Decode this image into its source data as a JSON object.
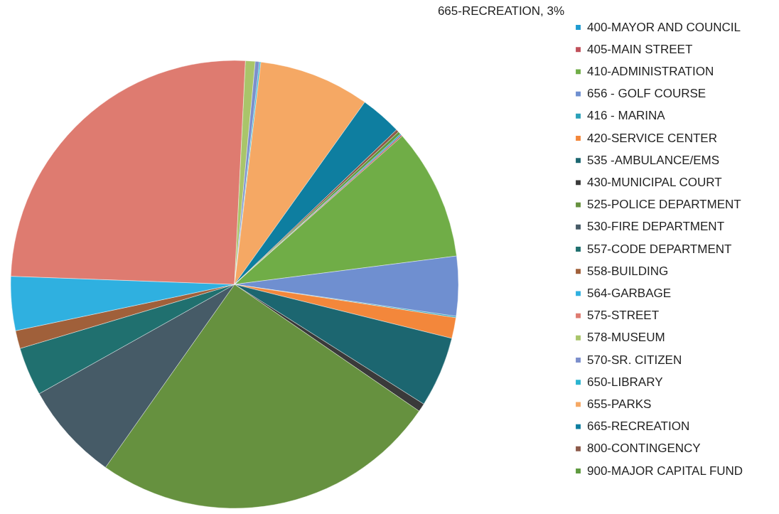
{
  "chart_data": {
    "type": "pie",
    "categories": [
      "400-MAYOR AND COUNCIL",
      "405-MAIN STREET",
      "410-ADMINISTRATION",
      "656 - GOLF COURSE",
      "416 - MARINA",
      "420-SERVICE CENTER",
      "535 -AMBULANCE/EMS",
      "430-MUNICIPAL COURT",
      "525-POLICE DEPARTMENT",
      "530-FIRE DEPARTMENT",
      "557-CODE DEPARTMENT",
      "558-BUILDING",
      "564-GARBAGE",
      "575-STREET",
      "578-MUSEUM",
      "570-SR. CITIZEN",
      "650-LIBRARY",
      "655-PARKS",
      "665-RECREATION",
      "800-CONTINGENCY",
      "900-MAJOR CAPITAL FUND"
    ],
    "values": [
      0.1,
      0.1,
      9.5,
      4.3,
      0.1,
      1.5,
      5.1,
      0.6,
      25.2,
      7.1,
      3.5,
      1.3,
      3.9,
      25.2,
      0.7,
      0.3,
      0.1,
      8,
      3,
      0.2,
      0.2
    ],
    "colors": [
      "#1f9bd1",
      "#c0505a",
      "#70ad47",
      "#6f8fd0",
      "#2aa0b8",
      "#f3873b",
      "#1c6670",
      "#3a3a3a",
      "#66913f",
      "#465b67",
      "#20706f",
      "#a0603a",
      "#2fb0e0",
      "#de7b70",
      "#a9c56a",
      "#7c8fcc",
      "#2ab4d0",
      "#f5a864",
      "#0e7ea0",
      "#8c5a4a",
      "#5f9a40"
    ],
    "annotations": [
      "665-RECREATION, 3%"
    ],
    "legend": "right"
  }
}
